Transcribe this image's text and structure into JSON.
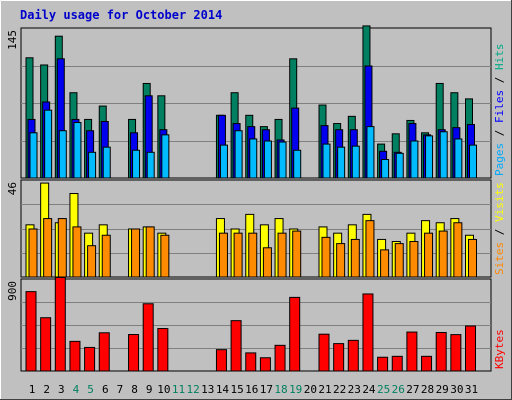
{
  "chart_data": {
    "type": "bar",
    "title": "Daily usage for October 2014",
    "days": [
      "1",
      "2",
      "3",
      "4",
      "5",
      "6",
      "7",
      "8",
      "9",
      "10",
      "11",
      "12",
      "13",
      "14",
      "15",
      "16",
      "17",
      "18",
      "19",
      "20",
      "21",
      "22",
      "23",
      "24",
      "25",
      "26",
      "27",
      "28",
      "29",
      "30",
      "31"
    ],
    "weekend_days": [
      "4",
      "5",
      "11",
      "12",
      "18",
      "19",
      "25",
      "26"
    ],
    "panels": [
      {
        "id": "hits",
        "axis_max": 145,
        "axis_max_label": "145",
        "legend": [
          {
            "text": "Pages",
            "color": "#00aaff"
          },
          {
            "text": " / ",
            "color": "#000000"
          },
          {
            "text": "Files",
            "color": "#0000ff"
          },
          {
            "text": " / ",
            "color": "#000000"
          },
          {
            "text": "Hits",
            "color": "#00aa88"
          }
        ],
        "series": [
          {
            "name": "Hits",
            "color": "#008060",
            "values": [
              117,
              110,
              138,
              83,
              57,
              70,
              0,
              57,
              92,
              80,
              0,
              0,
              0,
              61,
              83,
              61,
              50,
              57,
              116,
              0,
              71,
              53,
              60,
              148,
              33,
              43,
              56,
              44,
              92,
              83,
              77
            ]
          },
          {
            "name": "Files",
            "color": "#0000ee",
            "values": [
              57,
              74,
              116,
              57,
              46,
              55,
              0,
              44,
              80,
              47,
              0,
              0,
              0,
              61,
              53,
              50,
              47,
              37,
              68,
              0,
              51,
              47,
              47,
              109,
              26,
              25,
              53,
              42,
              47,
              49,
              52
            ]
          },
          {
            "name": "Pages",
            "color": "#00bbff",
            "values": [
              44,
              66,
              46,
              54,
              25,
              30,
              0,
              27,
              25,
              42,
              0,
              0,
              0,
              32,
              46,
              38,
              36,
              35,
              27,
              0,
              33,
              30,
              31,
              50,
              18,
              24,
              36,
              41,
              45,
              38,
              32
            ]
          }
        ]
      },
      {
        "id": "visits",
        "axis_max": 46,
        "axis_max_label": "46",
        "legend": [
          {
            "text": "Sites",
            "color": "#ff8800"
          },
          {
            "text": " / ",
            "color": "#000000"
          },
          {
            "text": "Visits",
            "color": "#ffff00"
          }
        ],
        "series": [
          {
            "name": "Visits",
            "color": "#ffff00",
            "values": [
              25,
              45,
              26,
              40,
              21,
              25,
              0,
              23,
              24,
              21,
              0,
              0,
              0,
              28,
              23,
              30,
              25,
              28,
              23,
              0,
              24,
              21,
              25,
              30,
              18,
              17,
              21,
              27,
              26,
              28,
              20
            ]
          },
          {
            "name": "Sites",
            "color": "#ff8c00",
            "values": [
              23,
              28,
              28,
              24,
              15,
              20,
              0,
              23,
              24,
              20,
              0,
              0,
              0,
              21,
              21,
              21,
              14,
              21,
              22,
              0,
              19,
              16,
              18,
              27,
              13,
              16,
              17,
              21,
              22,
              26,
              18
            ]
          }
        ]
      },
      {
        "id": "kbytes",
        "axis_max": 900,
        "axis_max_label": "900",
        "legend": [
          {
            "text": "KBytes",
            "color": "#ff0000"
          }
        ],
        "series": [
          {
            "name": "KBytes",
            "color": "#ff0000",
            "values": [
              785,
              527,
              925,
              293,
              233,
              378,
              0,
              361,
              665,
              420,
              0,
              0,
              0,
              211,
              498,
              179,
              131,
              254,
              728,
              0,
              364,
              271,
              303,
              762,
              136,
              145,
              385,
              145,
              381,
              360,
              445
            ]
          }
        ]
      }
    ]
  }
}
